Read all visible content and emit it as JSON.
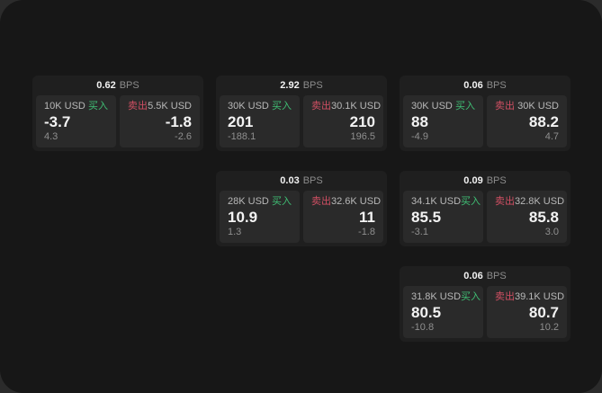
{
  "labels": {
    "bps_unit": "BPS",
    "buy": "买入",
    "sell": "卖出"
  },
  "colors": {
    "buy_green": "#3fbe74",
    "sell_red": "#d04f63",
    "window_bg": "#171717",
    "card_bg": "#1f1f1f",
    "panel_bg": "#2a2a2a"
  },
  "cards": [
    {
      "bps": "0.62",
      "buy": {
        "size": "10K USD",
        "price": "-3.7",
        "sub": "4.3"
      },
      "sell": {
        "size": "5.5K USD",
        "price": "-1.8",
        "sub": "-2.6"
      }
    },
    {
      "bps": "2.92",
      "buy": {
        "size": "30K USD",
        "price": "201",
        "sub": "-188.1"
      },
      "sell": {
        "size": "30.1K USD",
        "price": "210",
        "sub": "196.5"
      }
    },
    {
      "bps": "0.06",
      "buy": {
        "size": "30K USD",
        "price": "88",
        "sub": "-4.9"
      },
      "sell": {
        "size": "30K USD",
        "price": "88.2",
        "sub": "4.7"
      }
    },
    {
      "bps": "0.03",
      "buy": {
        "size": "28K USD",
        "price": "10.9",
        "sub": "1.3"
      },
      "sell": {
        "size": "32.6K USD",
        "price": "11",
        "sub": "-1.8"
      }
    },
    {
      "bps": "0.09",
      "buy": {
        "size": "34.1K USD",
        "price": "85.5",
        "sub": "-3.1"
      },
      "sell": {
        "size": "32.8K USD",
        "price": "85.8",
        "sub": "3.0"
      }
    },
    {
      "bps": "0.06",
      "buy": {
        "size": "31.8K USD",
        "price": "80.5",
        "sub": "-10.8"
      },
      "sell": {
        "size": "39.1K USD",
        "price": "80.7",
        "sub": "10.2"
      }
    }
  ]
}
